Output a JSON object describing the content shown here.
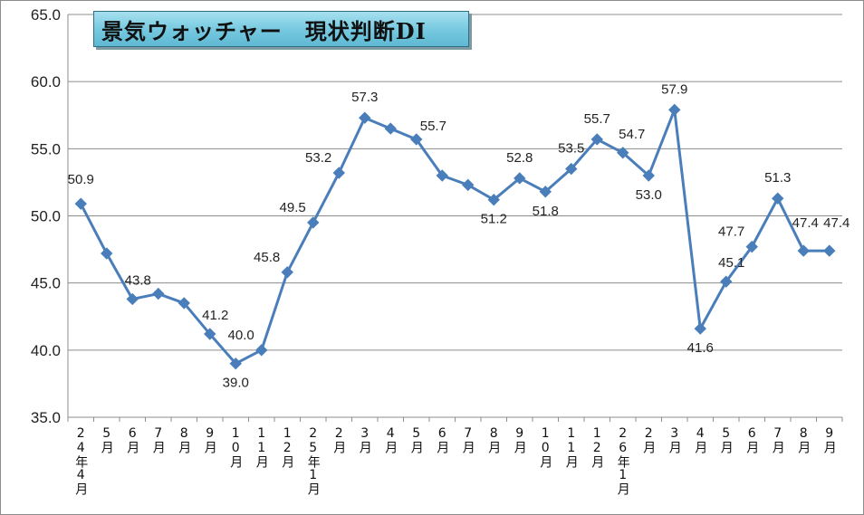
{
  "chart_data": {
    "type": "line",
    "title": "景気ウォッチャー　現状判断DI",
    "ylim": [
      35.0,
      65.0
    ],
    "yticks": [
      "35.0",
      "40.0",
      "45.0",
      "50.0",
      "55.0",
      "60.0",
      "65.0"
    ],
    "grid": "horizontal",
    "line_color": "#4a7ebb",
    "categories": [
      "24年4月",
      "5月",
      "6月",
      "7月",
      "8月",
      "9月",
      "10月",
      "11月",
      "12月",
      "25年1月",
      "2月",
      "3月",
      "4月",
      "5月",
      "6月",
      "7月",
      "8月",
      "9月",
      "10月",
      "11月",
      "12月",
      "26年1月",
      "2月",
      "3月",
      "4月",
      "5月",
      "6月",
      "7月",
      "8月",
      "9月"
    ],
    "values": [
      50.9,
      47.2,
      43.8,
      44.2,
      43.5,
      41.2,
      39.0,
      40.0,
      45.8,
      49.5,
      53.2,
      57.3,
      56.5,
      55.7,
      53.0,
      52.3,
      51.2,
      52.8,
      51.8,
      53.5,
      55.7,
      54.7,
      53.0,
      57.9,
      41.6,
      45.1,
      47.7,
      51.3,
      47.4,
      47.4
    ],
    "data_labels": [
      {
        "i": 0,
        "text": "50.9"
      },
      {
        "i": 2,
        "text": "43.8"
      },
      {
        "i": 5,
        "text": "41.2"
      },
      {
        "i": 6,
        "text": "39.0"
      },
      {
        "i": 7,
        "text": "40.0"
      },
      {
        "i": 8,
        "text": "45.8"
      },
      {
        "i": 9,
        "text": "49.5"
      },
      {
        "i": 10,
        "text": "53.2"
      },
      {
        "i": 11,
        "text": "57.3"
      },
      {
        "i": 13,
        "text": "55.7"
      },
      {
        "i": 16,
        "text": "51.2"
      },
      {
        "i": 17,
        "text": "52.8"
      },
      {
        "i": 18,
        "text": "51.8"
      },
      {
        "i": 19,
        "text": "53.5"
      },
      {
        "i": 20,
        "text": "55.7"
      },
      {
        "i": 21,
        "text": "54.7"
      },
      {
        "i": 22,
        "text": "53.0"
      },
      {
        "i": 23,
        "text": "57.9"
      },
      {
        "i": 24,
        "text": "41.6"
      },
      {
        "i": 25,
        "text": "45.1"
      },
      {
        "i": 26,
        "text": "47.7"
      },
      {
        "i": 27,
        "text": "51.3"
      },
      {
        "i": 28,
        "text": "47.4"
      },
      {
        "i": 29,
        "text": "47.4"
      }
    ]
  }
}
